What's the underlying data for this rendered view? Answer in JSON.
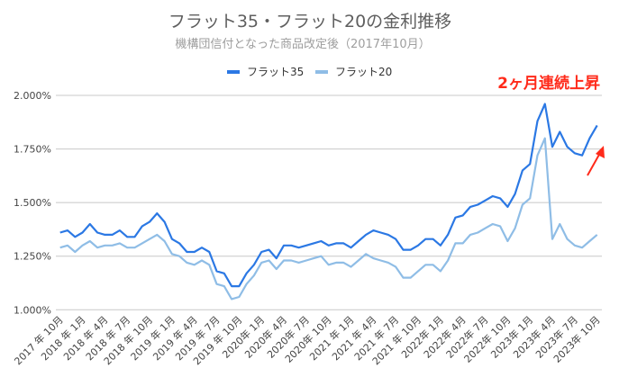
{
  "chart_data": {
    "type": "line",
    "title": "フラット35・フラット20の金利推移",
    "subtitle": "機構団信付となった商品改定後（2017年10月）",
    "xlabel": "",
    "ylabel": "",
    "ylim": [
      1.0,
      2.0
    ],
    "y_ticks": [
      "1.000%",
      "1.250%",
      "1.500%",
      "1.750%",
      "2.000%"
    ],
    "grid": true,
    "legend_position": "top",
    "x_tick_labels": [
      "2017 年 10月",
      "2018 年 1月",
      "2018 年 4月",
      "2018 年 7月",
      "2018 年 10月",
      "2019 年 1月",
      "2019 年 4月",
      "2019 年 7月",
      "2019 年 10月",
      "2020年 1月",
      "2020年 4月",
      "2020年 7月",
      "2020年 10月",
      "2021 年 1月",
      "2021 年 4月",
      "2021 年 7月",
      "2021 年 10月",
      "2022年 1月",
      "2022年 4月",
      "2022年 7月",
      "2022年 10月",
      "2023年 1月",
      "2023年 4月",
      "2023年 7月",
      "2023年 10月"
    ],
    "x_start": "2017-10",
    "x_interval": "monthly",
    "series": [
      {
        "name": "フラット35",
        "color": "#2b78e4",
        "values": [
          1.36,
          1.37,
          1.34,
          1.36,
          1.4,
          1.36,
          1.35,
          1.35,
          1.37,
          1.34,
          1.34,
          1.39,
          1.41,
          1.45,
          1.41,
          1.33,
          1.31,
          1.27,
          1.27,
          1.29,
          1.27,
          1.18,
          1.17,
          1.11,
          1.11,
          1.17,
          1.21,
          1.27,
          1.28,
          1.24,
          1.3,
          1.3,
          1.29,
          1.3,
          1.31,
          1.32,
          1.3,
          1.31,
          1.31,
          1.29,
          1.32,
          1.35,
          1.37,
          1.36,
          1.35,
          1.33,
          1.28,
          1.28,
          1.3,
          1.33,
          1.33,
          1.3,
          1.35,
          1.43,
          1.44,
          1.48,
          1.49,
          1.51,
          1.53,
          1.52,
          1.48,
          1.54,
          1.65,
          1.68,
          1.88,
          1.96,
          1.76,
          1.83,
          1.76,
          1.73,
          1.72,
          1.8,
          1.86
        ]
      },
      {
        "name": "フラット20",
        "color": "#8fbde6",
        "values": [
          1.29,
          1.3,
          1.27,
          1.3,
          1.32,
          1.29,
          1.3,
          1.3,
          1.31,
          1.29,
          1.29,
          1.31,
          1.33,
          1.35,
          1.32,
          1.26,
          1.25,
          1.22,
          1.21,
          1.23,
          1.21,
          1.12,
          1.11,
          1.05,
          1.06,
          1.12,
          1.16,
          1.22,
          1.23,
          1.19,
          1.23,
          1.23,
          1.22,
          1.23,
          1.24,
          1.25,
          1.21,
          1.22,
          1.22,
          1.2,
          1.23,
          1.26,
          1.24,
          1.23,
          1.22,
          1.2,
          1.15,
          1.15,
          1.18,
          1.21,
          1.21,
          1.18,
          1.23,
          1.31,
          1.31,
          1.35,
          1.36,
          1.38,
          1.4,
          1.39,
          1.32,
          1.38,
          1.49,
          1.52,
          1.72,
          1.8,
          1.33,
          1.4,
          1.33,
          1.3,
          1.29,
          1.32,
          1.35
        ]
      }
    ],
    "annotation": {
      "text": "2ヶ月連続上昇",
      "color": "#ff2a1a",
      "arrow": "up-right"
    }
  }
}
